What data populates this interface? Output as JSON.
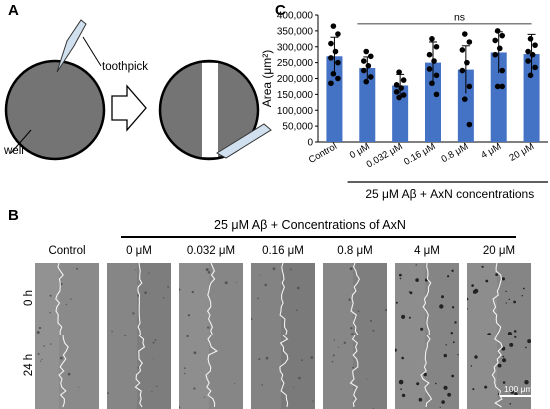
{
  "panels": {
    "a": "A",
    "b": "B",
    "c": "C"
  },
  "panel_a": {
    "toothpick_label": "toothpick",
    "well_label": "well"
  },
  "panel_b": {
    "header": "25 μM Aβ + Concentrations of AxN",
    "columns": [
      "Control",
      "0 μM",
      "0.032 μM",
      "0.16 μM",
      "0.8 μM",
      "4 μM",
      "20 μM"
    ],
    "rows": [
      "0 h",
      "24 h"
    ],
    "scale_bar": "100 μm"
  },
  "chart_data": {
    "type": "bar",
    "categories": [
      "Control",
      "0 μM",
      "0.032 μM",
      "0.16 μM",
      "0.8 μM",
      "4 μM",
      "20 μM"
    ],
    "values": [
      270000,
      233000,
      178000,
      250000,
      228000,
      282000,
      277000
    ],
    "errors": [
      60000,
      35000,
      35000,
      65000,
      75000,
      65000,
      62000
    ],
    "points": [
      [
        365000,
        340000,
        310000,
        285000,
        265000,
        250000,
        215000,
        200000,
        185000
      ],
      [
        285000,
        270000,
        255000,
        240000,
        225000,
        205000,
        190000
      ],
      [
        220000,
        195000,
        180000,
        170000,
        158000,
        148000,
        140000
      ],
      [
        325000,
        300000,
        275000,
        255000,
        230000,
        210000,
        185000,
        150000
      ],
      [
        340000,
        315000,
        290000,
        250000,
        225000,
        175000,
        135000,
        55000
      ],
      [
        350000,
        335000,
        320000,
        295000,
        275000,
        225000,
        175000,
        175000
      ],
      [
        325000,
        305000,
        285000,
        275000,
        255000,
        235000,
        210000
      ]
    ],
    "ylabel": "Area (μm²)",
    "xlabel": "25 μM Aβ + AxN concentrations",
    "yticks": [
      "0",
      "50,000",
      "100,000",
      "150,000",
      "200,000",
      "250,000",
      "300,000",
      "350,000",
      "400,000"
    ],
    "ylim": [
      0,
      400000
    ],
    "annotation": "ns",
    "bar_color": "#4472c4"
  }
}
